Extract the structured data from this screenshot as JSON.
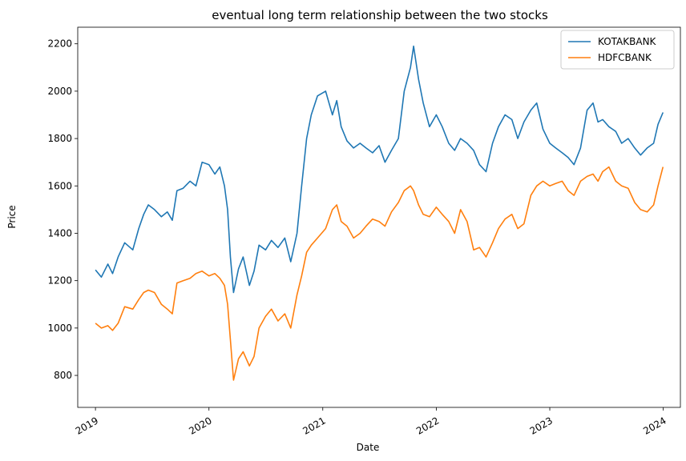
{
  "chart_data": {
    "type": "line",
    "title": "eventual long term relationship between the two stocks",
    "xlabel": "Date",
    "ylabel": "Price",
    "xlim": [
      "2018-11-05",
      "2024-02-25"
    ],
    "ylim": [
      665,
      2270
    ],
    "x_ticks": [
      "2019",
      "2020",
      "2021",
      "2022",
      "2023",
      "2024"
    ],
    "y_ticks": [
      800,
      1000,
      1200,
      1400,
      1600,
      1800,
      2000,
      2200
    ],
    "grid": false,
    "legend": "top-right",
    "series": [
      {
        "name": "KOTAKBANK",
        "color": "#1f77b4",
        "points": [
          [
            "2019-01-01",
            1245
          ],
          [
            "2019-01-20",
            1215
          ],
          [
            "2019-02-10",
            1270
          ],
          [
            "2019-02-25",
            1230
          ],
          [
            "2019-03-15",
            1300
          ],
          [
            "2019-04-05",
            1360
          ],
          [
            "2019-05-01",
            1330
          ],
          [
            "2019-05-20",
            1420
          ],
          [
            "2019-06-05",
            1480
          ],
          [
            "2019-06-20",
            1520
          ],
          [
            "2019-07-10",
            1500
          ],
          [
            "2019-08-01",
            1470
          ],
          [
            "2019-08-20",
            1490
          ],
          [
            "2019-09-05",
            1455
          ],
          [
            "2019-09-20",
            1580
          ],
          [
            "2019-10-10",
            1590
          ],
          [
            "2019-11-01",
            1620
          ],
          [
            "2019-11-20",
            1600
          ],
          [
            "2019-12-10",
            1700
          ],
          [
            "2020-01-01",
            1690
          ],
          [
            "2020-01-20",
            1650
          ],
          [
            "2020-02-05",
            1680
          ],
          [
            "2020-02-20",
            1600
          ],
          [
            "2020-03-01",
            1500
          ],
          [
            "2020-03-10",
            1300
          ],
          [
            "2020-03-20",
            1150
          ],
          [
            "2020-04-05",
            1250
          ],
          [
            "2020-04-20",
            1300
          ],
          [
            "2020-05-10",
            1180
          ],
          [
            "2020-05-25",
            1240
          ],
          [
            "2020-06-10",
            1350
          ],
          [
            "2020-07-01",
            1330
          ],
          [
            "2020-07-20",
            1370
          ],
          [
            "2020-08-10",
            1340
          ],
          [
            "2020-09-01",
            1380
          ],
          [
            "2020-09-20",
            1280
          ],
          [
            "2020-10-10",
            1400
          ],
          [
            "2020-10-25",
            1600
          ],
          [
            "2020-11-10",
            1800
          ],
          [
            "2020-11-25",
            1900
          ],
          [
            "2020-12-15",
            1980
          ],
          [
            "2021-01-10",
            2000
          ],
          [
            "2021-02-01",
            1900
          ],
          [
            "2021-02-15",
            1960
          ],
          [
            "2021-03-01",
            1850
          ],
          [
            "2021-03-20",
            1790
          ],
          [
            "2021-04-10",
            1760
          ],
          [
            "2021-05-01",
            1780
          ],
          [
            "2021-05-20",
            1760
          ],
          [
            "2021-06-10",
            1740
          ],
          [
            "2021-07-01",
            1770
          ],
          [
            "2021-07-20",
            1700
          ],
          [
            "2021-08-10",
            1750
          ],
          [
            "2021-09-01",
            1800
          ],
          [
            "2021-09-20",
            2000
          ],
          [
            "2021-10-10",
            2100
          ],
          [
            "2021-10-20",
            2190
          ],
          [
            "2021-11-05",
            2050
          ],
          [
            "2021-11-20",
            1950
          ],
          [
            "2021-12-10",
            1850
          ],
          [
            "2022-01-01",
            1900
          ],
          [
            "2022-01-20",
            1850
          ],
          [
            "2022-02-10",
            1780
          ],
          [
            "2022-03-01",
            1750
          ],
          [
            "2022-03-20",
            1800
          ],
          [
            "2022-04-10",
            1780
          ],
          [
            "2022-05-01",
            1750
          ],
          [
            "2022-05-20",
            1690
          ],
          [
            "2022-06-10",
            1660
          ],
          [
            "2022-07-01",
            1780
          ],
          [
            "2022-07-20",
            1850
          ],
          [
            "2022-08-10",
            1900
          ],
          [
            "2022-09-01",
            1880
          ],
          [
            "2022-09-20",
            1800
          ],
          [
            "2022-10-10",
            1870
          ],
          [
            "2022-11-01",
            1920
          ],
          [
            "2022-11-20",
            1950
          ],
          [
            "2022-12-10",
            1840
          ],
          [
            "2023-01-01",
            1780
          ],
          [
            "2023-01-20",
            1760
          ],
          [
            "2023-02-10",
            1740
          ],
          [
            "2023-03-01",
            1720
          ],
          [
            "2023-03-20",
            1690
          ],
          [
            "2023-04-10",
            1760
          ],
          [
            "2023-05-01",
            1920
          ],
          [
            "2023-05-20",
            1950
          ],
          [
            "2023-06-05",
            1870
          ],
          [
            "2023-06-20",
            1880
          ],
          [
            "2023-07-10",
            1850
          ],
          [
            "2023-08-01",
            1830
          ],
          [
            "2023-08-20",
            1780
          ],
          [
            "2023-09-10",
            1800
          ],
          [
            "2023-10-01",
            1760
          ],
          [
            "2023-10-20",
            1730
          ],
          [
            "2023-11-10",
            1760
          ],
          [
            "2023-12-01",
            1780
          ],
          [
            "2023-12-15",
            1860
          ],
          [
            "2023-12-31",
            1910
          ]
        ]
      },
      {
        "name": "HDFCBANK",
        "color": "#ff7f0e",
        "points": [
          [
            "2019-01-01",
            1020
          ],
          [
            "2019-01-20",
            1000
          ],
          [
            "2019-02-10",
            1010
          ],
          [
            "2019-02-25",
            990
          ],
          [
            "2019-03-15",
            1020
          ],
          [
            "2019-04-05",
            1090
          ],
          [
            "2019-05-01",
            1080
          ],
          [
            "2019-05-20",
            1120
          ],
          [
            "2019-06-05",
            1150
          ],
          [
            "2019-06-20",
            1160
          ],
          [
            "2019-07-10",
            1150
          ],
          [
            "2019-08-01",
            1100
          ],
          [
            "2019-08-20",
            1080
          ],
          [
            "2019-09-05",
            1060
          ],
          [
            "2019-09-20",
            1190
          ],
          [
            "2019-10-10",
            1200
          ],
          [
            "2019-11-01",
            1210
          ],
          [
            "2019-11-20",
            1230
          ],
          [
            "2019-12-10",
            1240
          ],
          [
            "2020-01-01",
            1220
          ],
          [
            "2020-01-20",
            1230
          ],
          [
            "2020-02-05",
            1210
          ],
          [
            "2020-02-20",
            1180
          ],
          [
            "2020-03-01",
            1100
          ],
          [
            "2020-03-10",
            950
          ],
          [
            "2020-03-20",
            780
          ],
          [
            "2020-04-05",
            870
          ],
          [
            "2020-04-20",
            900
          ],
          [
            "2020-05-10",
            840
          ],
          [
            "2020-05-25",
            880
          ],
          [
            "2020-06-10",
            1000
          ],
          [
            "2020-07-01",
            1050
          ],
          [
            "2020-07-20",
            1080
          ],
          [
            "2020-08-10",
            1030
          ],
          [
            "2020-09-01",
            1060
          ],
          [
            "2020-09-20",
            1000
          ],
          [
            "2020-10-10",
            1140
          ],
          [
            "2020-10-25",
            1220
          ],
          [
            "2020-11-10",
            1320
          ],
          [
            "2020-11-25",
            1350
          ],
          [
            "2020-12-15",
            1380
          ],
          [
            "2021-01-10",
            1420
          ],
          [
            "2021-02-01",
            1500
          ],
          [
            "2021-02-15",
            1520
          ],
          [
            "2021-03-01",
            1450
          ],
          [
            "2021-03-20",
            1430
          ],
          [
            "2021-04-10",
            1380
          ],
          [
            "2021-05-01",
            1400
          ],
          [
            "2021-05-20",
            1430
          ],
          [
            "2021-06-10",
            1460
          ],
          [
            "2021-07-01",
            1450
          ],
          [
            "2021-07-20",
            1430
          ],
          [
            "2021-08-10",
            1490
          ],
          [
            "2021-09-01",
            1530
          ],
          [
            "2021-09-20",
            1580
          ],
          [
            "2021-10-10",
            1600
          ],
          [
            "2021-10-20",
            1580
          ],
          [
            "2021-11-05",
            1520
          ],
          [
            "2021-11-20",
            1480
          ],
          [
            "2021-12-10",
            1470
          ],
          [
            "2022-01-01",
            1510
          ],
          [
            "2022-01-20",
            1480
          ],
          [
            "2022-02-10",
            1450
          ],
          [
            "2022-03-01",
            1400
          ],
          [
            "2022-03-20",
            1500
          ],
          [
            "2022-04-10",
            1450
          ],
          [
            "2022-05-01",
            1330
          ],
          [
            "2022-05-20",
            1340
          ],
          [
            "2022-06-10",
            1300
          ],
          [
            "2022-07-01",
            1360
          ],
          [
            "2022-07-20",
            1420
          ],
          [
            "2022-08-10",
            1460
          ],
          [
            "2022-09-01",
            1480
          ],
          [
            "2022-09-20",
            1420
          ],
          [
            "2022-10-10",
            1440
          ],
          [
            "2022-11-01",
            1560
          ],
          [
            "2022-11-20",
            1600
          ],
          [
            "2022-12-10",
            1620
          ],
          [
            "2023-01-01",
            1600
          ],
          [
            "2023-01-20",
            1610
          ],
          [
            "2023-02-10",
            1620
          ],
          [
            "2023-03-01",
            1580
          ],
          [
            "2023-03-20",
            1560
          ],
          [
            "2023-04-10",
            1620
          ],
          [
            "2023-05-01",
            1640
          ],
          [
            "2023-05-20",
            1650
          ],
          [
            "2023-06-05",
            1620
          ],
          [
            "2023-06-20",
            1660
          ],
          [
            "2023-07-10",
            1680
          ],
          [
            "2023-08-01",
            1620
          ],
          [
            "2023-08-20",
            1600
          ],
          [
            "2023-09-10",
            1590
          ],
          [
            "2023-10-01",
            1530
          ],
          [
            "2023-10-20",
            1500
          ],
          [
            "2023-11-10",
            1490
          ],
          [
            "2023-12-01",
            1520
          ],
          [
            "2023-12-15",
            1600
          ],
          [
            "2023-12-31",
            1680
          ]
        ]
      }
    ]
  }
}
